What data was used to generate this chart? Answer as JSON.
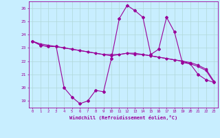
{
  "xlabel": "Windchill (Refroidissement éolien,°C)",
  "x_hours": [
    0,
    1,
    2,
    3,
    4,
    5,
    6,
    7,
    8,
    9,
    10,
    11,
    12,
    13,
    14,
    15,
    16,
    17,
    18,
    19,
    20,
    21,
    22,
    23
  ],
  "line1": [
    23.5,
    23.2,
    23.1,
    23.1,
    20.0,
    19.3,
    18.8,
    19.0,
    19.8,
    19.7,
    22.2,
    25.2,
    26.2,
    25.8,
    25.3,
    22.5,
    22.9,
    25.3,
    24.2,
    21.9,
    21.8,
    21.0,
    20.6,
    20.4
  ],
  "line2": [
    23.5,
    23.2,
    23.1,
    23.1,
    23.0,
    22.9,
    22.8,
    22.7,
    22.6,
    22.5,
    22.4,
    22.5,
    22.6,
    22.5,
    22.5,
    22.4,
    22.3,
    22.2,
    22.1,
    22.0,
    21.9,
    21.7,
    21.4,
    20.5
  ],
  "line3": [
    23.5,
    23.3,
    23.2,
    23.1,
    23.0,
    22.9,
    22.8,
    22.7,
    22.6,
    22.5,
    22.5,
    22.5,
    22.6,
    22.6,
    22.5,
    22.4,
    22.3,
    22.2,
    22.1,
    22.0,
    21.8,
    21.6,
    21.3,
    20.4
  ],
  "color": "#990099",
  "bg_color": "#c8eeff",
  "grid_color": "#b0d8d8",
  "ylim": [
    18.5,
    26.5
  ],
  "yticks": [
    19,
    20,
    21,
    22,
    23,
    24,
    25,
    26
  ]
}
